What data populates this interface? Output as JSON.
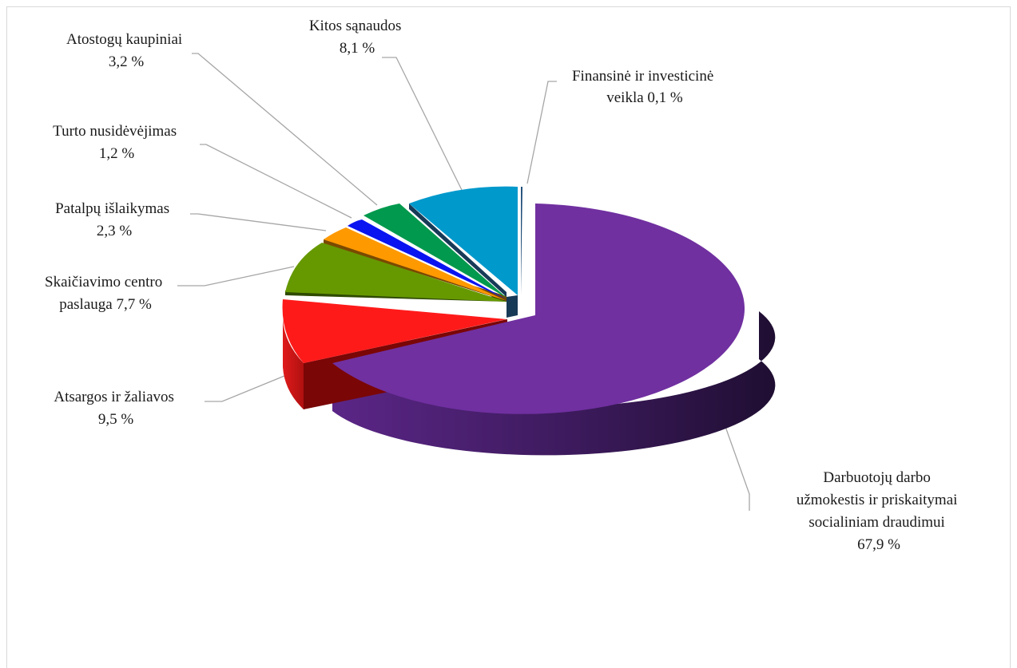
{
  "chart_data": {
    "type": "pie",
    "title": "",
    "style": "3d-exploded",
    "slices": [
      {
        "label": "Darbuotojų darbo užmokestis ir priskaitymai socialiniam draudimui",
        "value": 67.9,
        "label_lines": [
          "Darbuotojų darbo",
          "užmokestis ir priskaitymai",
          "socialiniam draudimui",
          "67,9 %"
        ],
        "color": "#7030a0"
      },
      {
        "label": "Atsargos ir žaliavos",
        "value": 9.5,
        "label_lines": [
          "Atsargos ir žaliavos",
          "9,5 %"
        ],
        "color": "#ff1a1a"
      },
      {
        "label": "Skaičiavimo centro paslauga",
        "value": 7.7,
        "label_lines": [
          "Skaičiavimo centro",
          "paslauga  7,7 %"
        ],
        "color": "#669900"
      },
      {
        "label": "Patalpų išlaikymas",
        "value": 2.3,
        "label_lines": [
          "Patalpų išlaikymas",
          "2,3 %"
        ],
        "color": "#ff9900"
      },
      {
        "label": "Turto nusidėvėjimas",
        "value": 1.2,
        "label_lines": [
          "Turto nusidėvėjimas",
          "1,2 %"
        ],
        "color": "#0a14f0"
      },
      {
        "label": "Atostogų kaupiniai",
        "value": 3.2,
        "label_lines": [
          "Atostogų kaupiniai",
          "3,2 %"
        ],
        "color": "#00994d"
      },
      {
        "label": "Kitos sąnaudos",
        "value": 8.1,
        "label_lines": [
          "Kitos sąnaudos",
          "8,1 %"
        ],
        "color": "#0099cc"
      },
      {
        "label": "Finansinė ir investicinė veikla",
        "value": 0.1,
        "label_lines": [
          "Finansinė ir investicinė",
          "veikla 0,1 %"
        ],
        "color": "#1f4e79"
      }
    ]
  }
}
